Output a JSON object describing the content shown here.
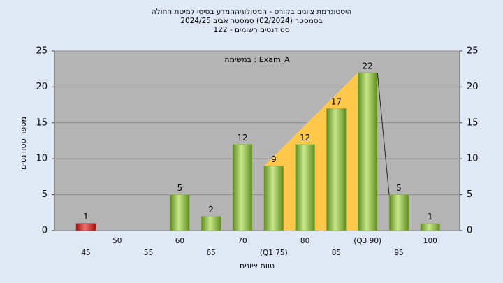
{
  "chart_data": {
    "type": "bar",
    "title": "היסטוגרמת ציונים בקורס - המטולוגיההמדע בסיסי למיטת חחולה",
    "subtitle": "בסמסטר  (02/2024)  סמסטר אביב 2024/25",
    "subtitle2": "סטודנטים רשומים - 122",
    "annotation": "במשימה : Exam_A",
    "y_label": "מספר סטודנטים",
    "x_label": "טווח ציונים",
    "categories": [
      "45",
      "50",
      "55",
      "60",
      "65",
      "70",
      "(Q1 75)",
      "80",
      "85",
      "(Q3 90)",
      "95",
      "100"
    ],
    "values": [
      1,
      0,
      0,
      5,
      2,
      12,
      9,
      12,
      17,
      22,
      5,
      1
    ],
    "colors": [
      "#d42020",
      "#8fbf3a",
      "#8fbf3a",
      "#8fbf3a",
      "#8fbf3a",
      "#8fbf3a",
      "#8fbf3a",
      "#8fbf3a",
      "#8fbf3a",
      "#8fbf3a",
      "#8fbf3a",
      "#8fbf3a"
    ],
    "quartile_color": "#ffc84a",
    "ylim": [
      0,
      25
    ],
    "yticks": [
      0,
      5,
      10,
      15,
      20,
      25
    ],
    "y2lim": [
      0,
      25
    ],
    "y2ticks": [
      0,
      5,
      10,
      15,
      20,
      25
    ],
    "grid": true
  }
}
